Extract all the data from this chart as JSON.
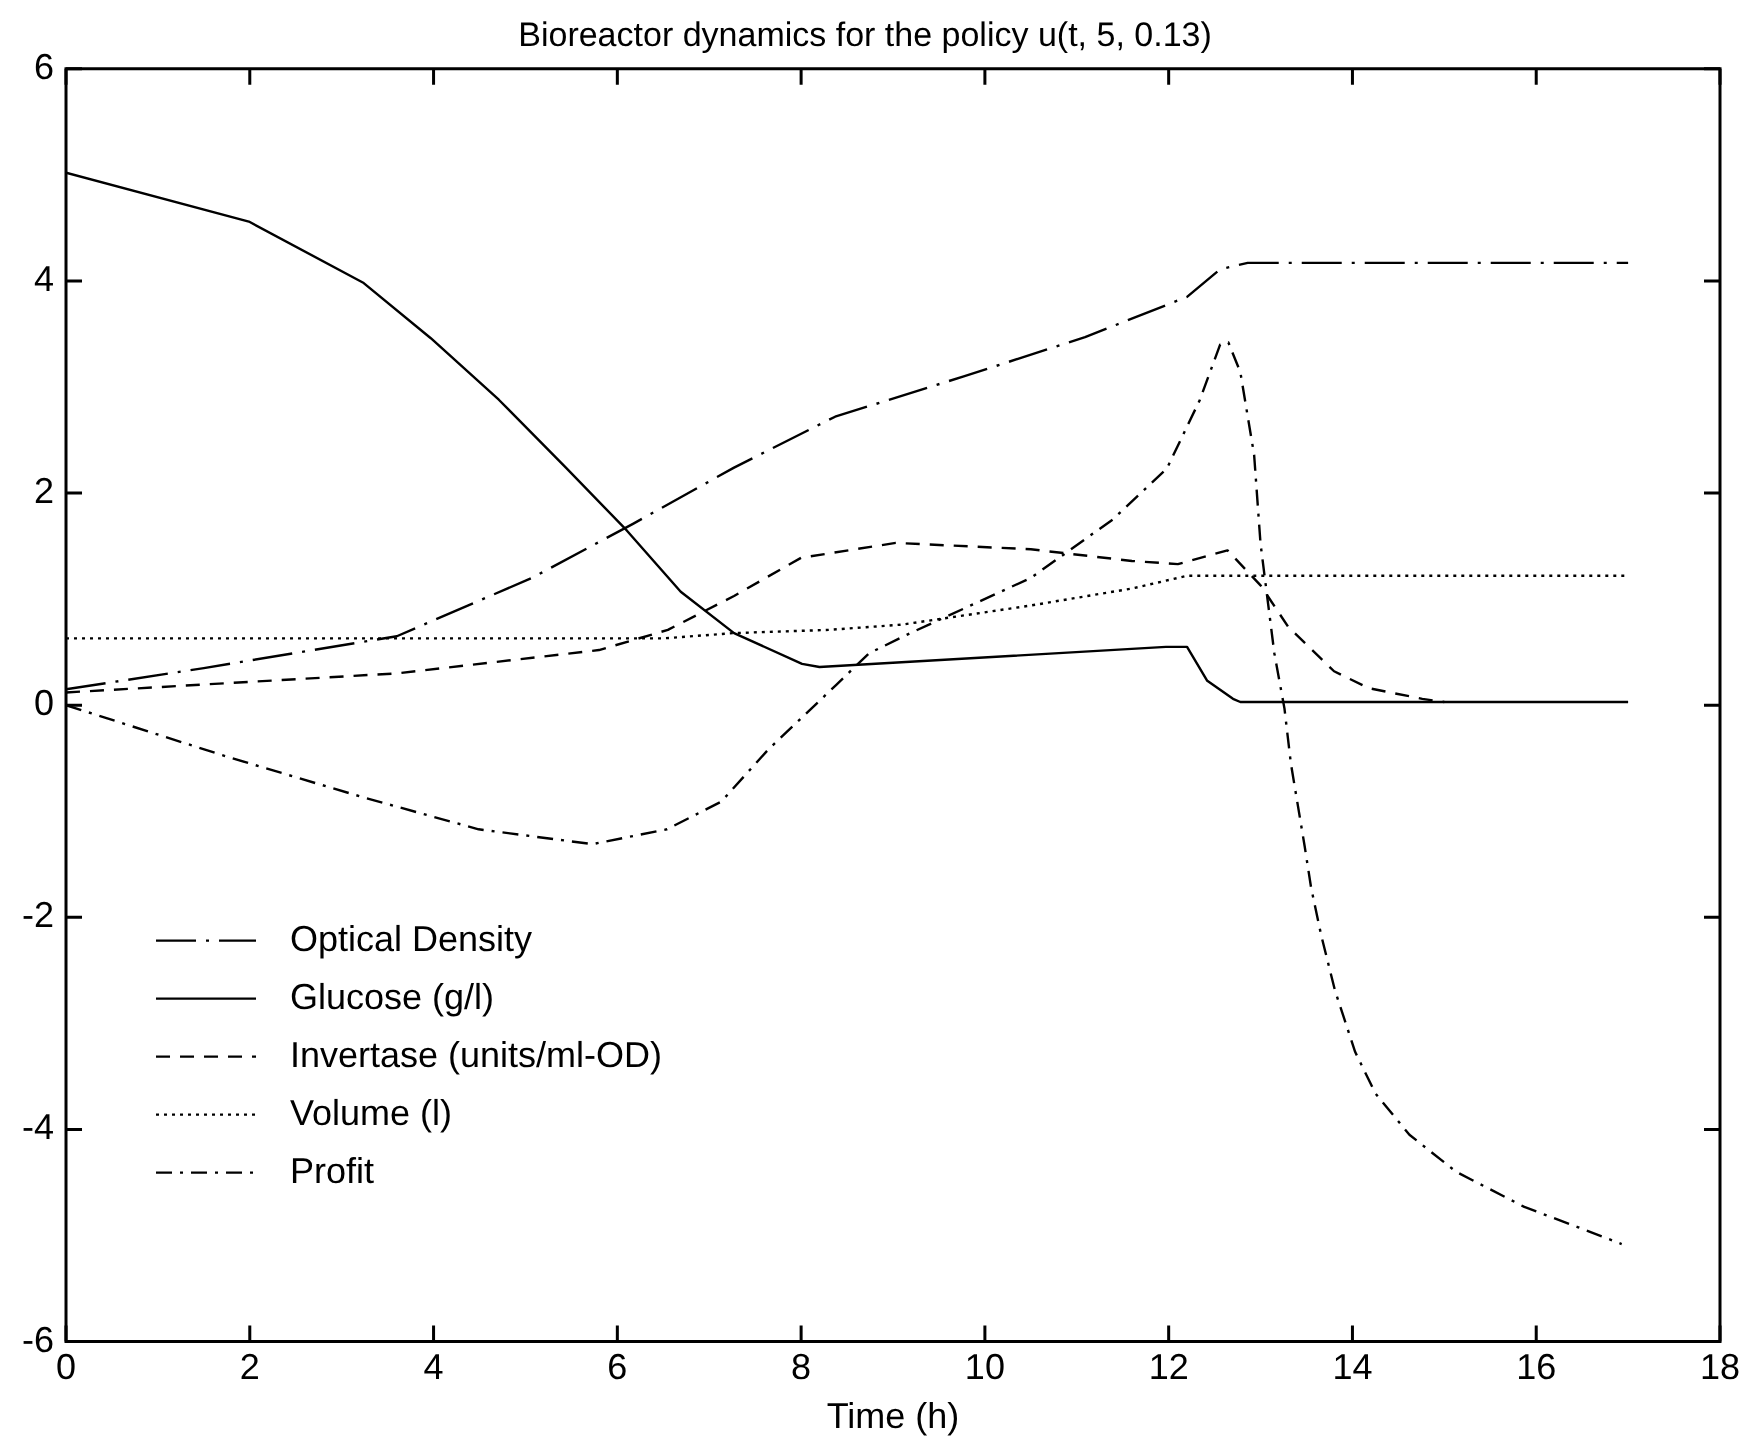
{
  "chart_data": {
    "type": "line",
    "title": "Bioreactor dynamics for the policy u(t, 5, 0.13)",
    "xlabel": "Time (h)",
    "xlim": [
      0,
      18
    ],
    "xticks": [
      0,
      2,
      4,
      6,
      8,
      10,
      12,
      14,
      16,
      18
    ],
    "ylim": [
      -6,
      6
    ],
    "yticks": [
      -6,
      -4,
      -2,
      0,
      2,
      4,
      6
    ],
    "grid": false,
    "legend": "bottom left",
    "marker": "none",
    "series": [
      {
        "name": "Optical Density",
        "color": "#000000",
        "line_style": "longdashdot",
        "x": [
          0,
          1.5,
          3.6,
          5.07,
          6.17,
          7.27,
          8.37,
          9.77,
          11.09,
          12.2,
          12.56,
          12.86,
          17
        ],
        "values": [
          0.15,
          0.35,
          0.65,
          1.2,
          1.71,
          2.24,
          2.72,
          3.1,
          3.47,
          3.85,
          4.11,
          4.17,
          4.17
        ]
      },
      {
        "name": "Glucose (g/l)",
        "color": "#000000",
        "line_style": "solid",
        "x": [
          0,
          1.99,
          3.24,
          3.97,
          4.71,
          5.44,
          6.1,
          6.69,
          7.27,
          8.01,
          8.2,
          11.97,
          12.2,
          12.42,
          12.7,
          12.78,
          17
        ],
        "values": [
          5.02,
          4.56,
          3.98,
          3.46,
          2.88,
          2.24,
          1.65,
          1.07,
          0.68,
          0.39,
          0.36,
          0.55,
          0.55,
          0.23,
          0.06,
          0.03,
          0.03
        ]
      },
      {
        "name": "Invertase (units/ml-OD)",
        "color": "#000000",
        "line_style": "dashed",
        "x": [
          0,
          2,
          3.6,
          5.8,
          6.55,
          7.27,
          8,
          9.03,
          10.5,
          11.6,
          12.1,
          12.64,
          13,
          13.3,
          13.8,
          14.18,
          14.76,
          15
        ],
        "values": [
          0.12,
          0.22,
          0.3,
          0.52,
          0.71,
          1.03,
          1.39,
          1.53,
          1.47,
          1.36,
          1.33,
          1.46,
          1.13,
          0.74,
          0.32,
          0.16,
          0.06,
          0.03
        ]
      },
      {
        "name": "Volume (l)",
        "color": "#000000",
        "line_style": "dotted",
        "x": [
          0,
          6.5,
          7.27,
          8.3,
          9.1,
          10.5,
          11.6,
          12.2,
          17
        ],
        "values": [
          0.63,
          0.63,
          0.68,
          0.71,
          0.76,
          0.94,
          1.1,
          1.22,
          1.22
        ]
      },
      {
        "name": "Profit",
        "color": "#000000",
        "line_style": "dashdot",
        "x": [
          0,
          1.77,
          3.24,
          4.49,
          5.73,
          6.54,
          7.13,
          7.64,
          8.38,
          8.74,
          9.19,
          10.5,
          11.39,
          11.98,
          12.34,
          12.56,
          12.65,
          12.78,
          12.93,
          13,
          13.15,
          13.26,
          13.33,
          13.48,
          13.55,
          13.66,
          13.81,
          14.03,
          14.25,
          14.62,
          15.13,
          15.87,
          16.45,
          16.93
        ],
        "values": [
          0,
          -0.49,
          -0.87,
          -1.17,
          -1.31,
          -1.17,
          -0.91,
          -0.42,
          0.19,
          0.49,
          0.68,
          1.2,
          1.75,
          2.23,
          2.88,
          3.4,
          3.42,
          3.14,
          2.36,
          1.52,
          0.49,
          -0.03,
          -0.55,
          -1.33,
          -1.72,
          -2.17,
          -2.69,
          -3.27,
          -3.66,
          -4.05,
          -4.4,
          -4.73,
          -4.92,
          -5.08
        ]
      }
    ]
  }
}
